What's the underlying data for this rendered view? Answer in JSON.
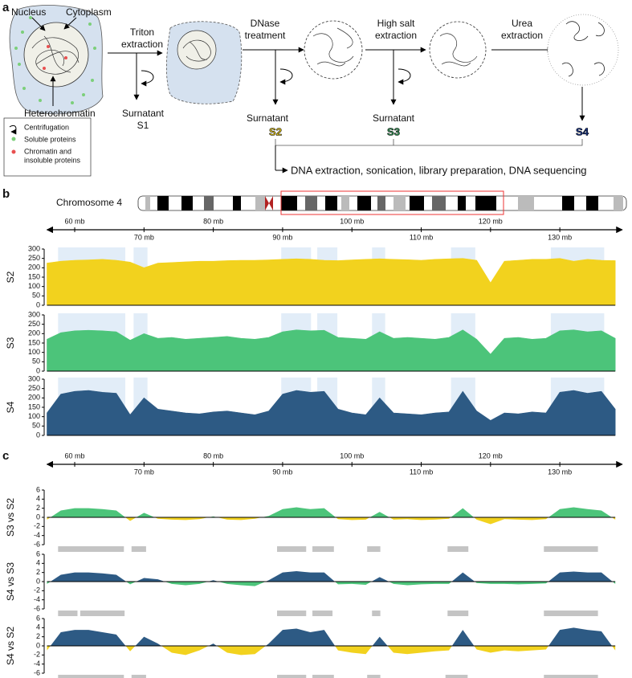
{
  "diagram": {
    "label": "a",
    "nucleus": "Nucleus",
    "cytoplasm": "Cytoplasm",
    "heterochromatin": "Heterochromatin",
    "steps": [
      {
        "name": [
          "Triton",
          "extraction"
        ]
      },
      {
        "name": [
          "DNase",
          "treatment"
        ]
      },
      {
        "name": [
          "High salt",
          "extraction"
        ]
      },
      {
        "name": [
          "Urea",
          "extraction"
        ]
      }
    ],
    "supernatants": [
      {
        "text": "Surnatant",
        "sample": "S1"
      },
      {
        "text": "Surnatant",
        "sample": "S2"
      },
      {
        "text": "Surnatant",
        "sample": "S3"
      },
      {
        "sample": "S4"
      }
    ],
    "legend": {
      "centrifugation": "Centrifugation",
      "soluble": "Soluble proteins",
      "insoluble": [
        "Chromatin and",
        "insoluble proteins"
      ]
    },
    "downstream": "DNA extraction, sonication, library preparation, DNA sequencing"
  },
  "chart_data": [
    {
      "type": "area",
      "panel": "b",
      "chromosome": "Chromosome 4",
      "xlim": [
        56,
        139
      ],
      "xticks": [
        {
          "value": 60,
          "label": "60 mb"
        },
        {
          "value": 70,
          "label": "70 mb"
        },
        {
          "value": 80,
          "label": "80 mb"
        },
        {
          "value": 90,
          "label": "90 mb"
        },
        {
          "value": 100,
          "label": "100 mb"
        },
        {
          "value": 110,
          "label": "110 mb"
        },
        {
          "value": 120,
          "label": "120 mb"
        },
        {
          "value": 130,
          "label": "130 mb"
        }
      ],
      "ylim": [
        0,
        300
      ],
      "yticks": [
        0,
        50,
        100,
        150,
        200,
        250,
        300
      ],
      "highlight_color": "#e2edf8",
      "highlight_regions": [
        [
          57.6,
          67.3
        ],
        [
          68.5,
          70.5
        ],
        [
          89.8,
          94.1
        ],
        [
          95,
          97.9
        ],
        [
          102.9,
          104.8
        ],
        [
          114.3,
          117.8
        ],
        [
          128.7,
          136.4
        ]
      ],
      "x": [
        56,
        58,
        60,
        62,
        64,
        66,
        68,
        70,
        72,
        74,
        76,
        78,
        80,
        82,
        84,
        86,
        88,
        90,
        92,
        94,
        96,
        98,
        100,
        102,
        104,
        106,
        108,
        110,
        112,
        114,
        116,
        118,
        120,
        122,
        124,
        126,
        128,
        130,
        132,
        134,
        136,
        138
      ],
      "series": [
        {
          "name": "S2",
          "color": "#f2d21e",
          "values": [
            225,
            235,
            240,
            242,
            245,
            240,
            230,
            200,
            225,
            228,
            232,
            235,
            235,
            238,
            240,
            240,
            242,
            245,
            248,
            245,
            240,
            238,
            242,
            245,
            248,
            245,
            243,
            240,
            245,
            248,
            250,
            240,
            120,
            235,
            240,
            245,
            245,
            250,
            235,
            245,
            240,
            238
          ]
        },
        {
          "name": "S3",
          "color": "#4cc47a",
          "values": [
            170,
            205,
            215,
            218,
            215,
            210,
            165,
            200,
            175,
            180,
            170,
            175,
            180,
            185,
            175,
            170,
            180,
            210,
            220,
            215,
            218,
            180,
            175,
            170,
            210,
            175,
            180,
            175,
            170,
            180,
            220,
            170,
            90,
            175,
            180,
            170,
            175,
            215,
            220,
            210,
            215,
            175
          ]
        },
        {
          "name": "S4",
          "color": "#2d5a84",
          "values": [
            120,
            220,
            235,
            240,
            230,
            225,
            110,
            200,
            140,
            130,
            120,
            115,
            125,
            130,
            120,
            110,
            130,
            220,
            240,
            230,
            235,
            140,
            120,
            110,
            200,
            120,
            115,
            110,
            120,
            125,
            235,
            130,
            80,
            120,
            115,
            125,
            120,
            230,
            240,
            225,
            235,
            140
          ]
        }
      ]
    },
    {
      "type": "diverging_area",
      "panel": "c",
      "xlim": [
        56,
        139
      ],
      "xticks": [
        {
          "value": 60,
          "label": "60 mb"
        },
        {
          "value": 70,
          "label": "70 mb"
        },
        {
          "value": 80,
          "label": "80 mb"
        },
        {
          "value": 90,
          "label": "90 mb"
        },
        {
          "value": 100,
          "label": "100 mb"
        },
        {
          "value": 110,
          "label": "110 mb"
        },
        {
          "value": 120,
          "label": "120 mb"
        },
        {
          "value": 130,
          "label": "130 mb"
        }
      ],
      "ylim": [
        -6,
        6
      ],
      "yticks": [
        6,
        4,
        2,
        0,
        -2,
        -4,
        -6
      ],
      "region_color": "#c4c4c4",
      "x": [
        56,
        58,
        60,
        62,
        64,
        66,
        68,
        70,
        72,
        74,
        76,
        78,
        80,
        82,
        84,
        86,
        88,
        90,
        92,
        94,
        96,
        98,
        100,
        102,
        104,
        106,
        108,
        110,
        112,
        114,
        116,
        118,
        120,
        122,
        124,
        126,
        128,
        130,
        132,
        134,
        136,
        138
      ],
      "series": [
        {
          "name": "S3 vs S2",
          "color": "#4cc47a",
          "negative_color": "#f2d21e",
          "values": [
            -0.5,
            1.5,
            2,
            2,
            1.8,
            1.5,
            -0.8,
            1,
            -0.3,
            -0.5,
            -0.6,
            -0.4,
            0.2,
            -0.5,
            -0.6,
            -0.3,
            0.3,
            1.8,
            2.2,
            1.8,
            2,
            -0.4,
            -0.6,
            -0.5,
            1.2,
            -0.5,
            -0.4,
            -0.6,
            -0.5,
            -0.3,
            2,
            -0.5,
            -1.5,
            -0.4,
            -0.5,
            -0.6,
            -0.4,
            1.8,
            2.2,
            1.8,
            1.5,
            -0.5
          ],
          "regions": [
            [
              57.6,
              67.1
            ],
            [
              68.2,
              70.3
            ],
            [
              89.2,
              93.4
            ],
            [
              94.3,
              97.4
            ],
            [
              102.2,
              104.1
            ],
            [
              113.8,
              116.8
            ],
            [
              127.7,
              135.5
            ]
          ]
        },
        {
          "name": "S4 vs S3",
          "color": "#2d5a84",
          "negative_color": "#4cc47a",
          "values": [
            -0.5,
            1.5,
            2,
            2,
            1.8,
            1.5,
            -0.6,
            0.8,
            0.5,
            -0.5,
            -0.8,
            -0.5,
            0.3,
            -0.5,
            -0.8,
            -1,
            0.3,
            2,
            2.3,
            2,
            2,
            -0.6,
            -0.5,
            -0.7,
            1,
            -0.5,
            -0.8,
            -0.6,
            -0.5,
            -0.5,
            2,
            -0.3,
            -0.5,
            -0.5,
            -0.6,
            -0.5,
            -0.4,
            2,
            2.2,
            2,
            2,
            -0.5
          ],
          "regions": [
            [
              57.6,
              60.4
            ],
            [
              60.8,
              67.2
            ],
            [
              89.2,
              93.4
            ],
            [
              94.3,
              97.2
            ],
            [
              102.9,
              104.1
            ],
            [
              113.8,
              116.8
            ],
            [
              127.7,
              135.5
            ]
          ]
        },
        {
          "name": "S4 vs S2",
          "color": "#2d5a84",
          "negative_color": "#f2d21e",
          "values": [
            -1,
            3,
            3.5,
            3.5,
            3,
            2.5,
            -1.2,
            2,
            0.5,
            -1.5,
            -2,
            -1,
            0.5,
            -1.5,
            -2,
            -1.8,
            0.5,
            3.5,
            3.8,
            3,
            3.5,
            -1,
            -1.5,
            -1.8,
            2,
            -1.5,
            -1.8,
            -1.5,
            -1.2,
            -1,
            3.5,
            -0.8,
            -1.5,
            -1,
            -1.2,
            -1,
            -0.8,
            3.5,
            4,
            3.5,
            3.2,
            -1
          ],
          "regions": [
            [
              57.6,
              67.1
            ],
            [
              68.2,
              70.3
            ],
            [
              89.2,
              93.4
            ],
            [
              94.3,
              97.4
            ],
            [
              102.2,
              104.1
            ],
            [
              113.5,
              116.7
            ],
            [
              127.7,
              135.5
            ]
          ]
        }
      ]
    }
  ]
}
